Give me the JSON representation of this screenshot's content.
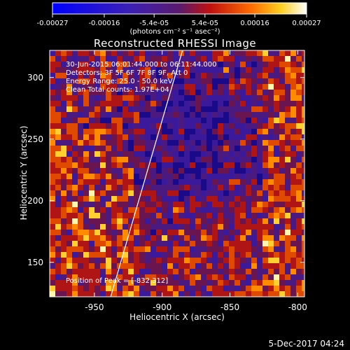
{
  "chart_data": {
    "type": "heatmap",
    "title": "Reconstructed RHESSI Image",
    "xlabel": "Heliocentric X (arcsec)",
    "ylabel": "Heliocentric Y (arcsec)",
    "xlim": [
      -983,
      -795
    ],
    "ylim": [
      122,
      322
    ],
    "x_ticks": [
      "-950",
      "-900",
      "-850",
      "-800"
    ],
    "y_ticks": [
      "150",
      "200",
      "250",
      "300"
    ],
    "colorbar": {
      "ticks": [
        "-0.00027",
        "-0.00016",
        "-5.4e-05",
        "5.4e-05",
        "0.00016",
        "0.00027"
      ],
      "units": "(photons cm⁻² s⁻¹ asec⁻²)",
      "range": [
        -0.00027,
        0.00027
      ],
      "colormap": "blue-purple-red-yellow-white"
    },
    "limb_line": {
      "x": [
        -938,
        -885
      ],
      "y": [
        122,
        322
      ]
    },
    "annotations": {
      "time": "30-Jun-2015 06:01:44.000 to 06:11:44.000",
      "detectors": "Detectors: 3F 5F 6F 7F 8F 9F, Att 0",
      "energy": "Energy Range: 25.0 - 50.0 keV",
      "method": "Clean      Total counts: 1.97E+04",
      "peak": "Position of Peak = [-832,312]"
    },
    "background_colors": [
      "#3a0f8a",
      "#b01a1a",
      "#ff8a00",
      "#ffe040"
    ]
  },
  "footer": {
    "date": "5-Dec-2017 04:24"
  }
}
